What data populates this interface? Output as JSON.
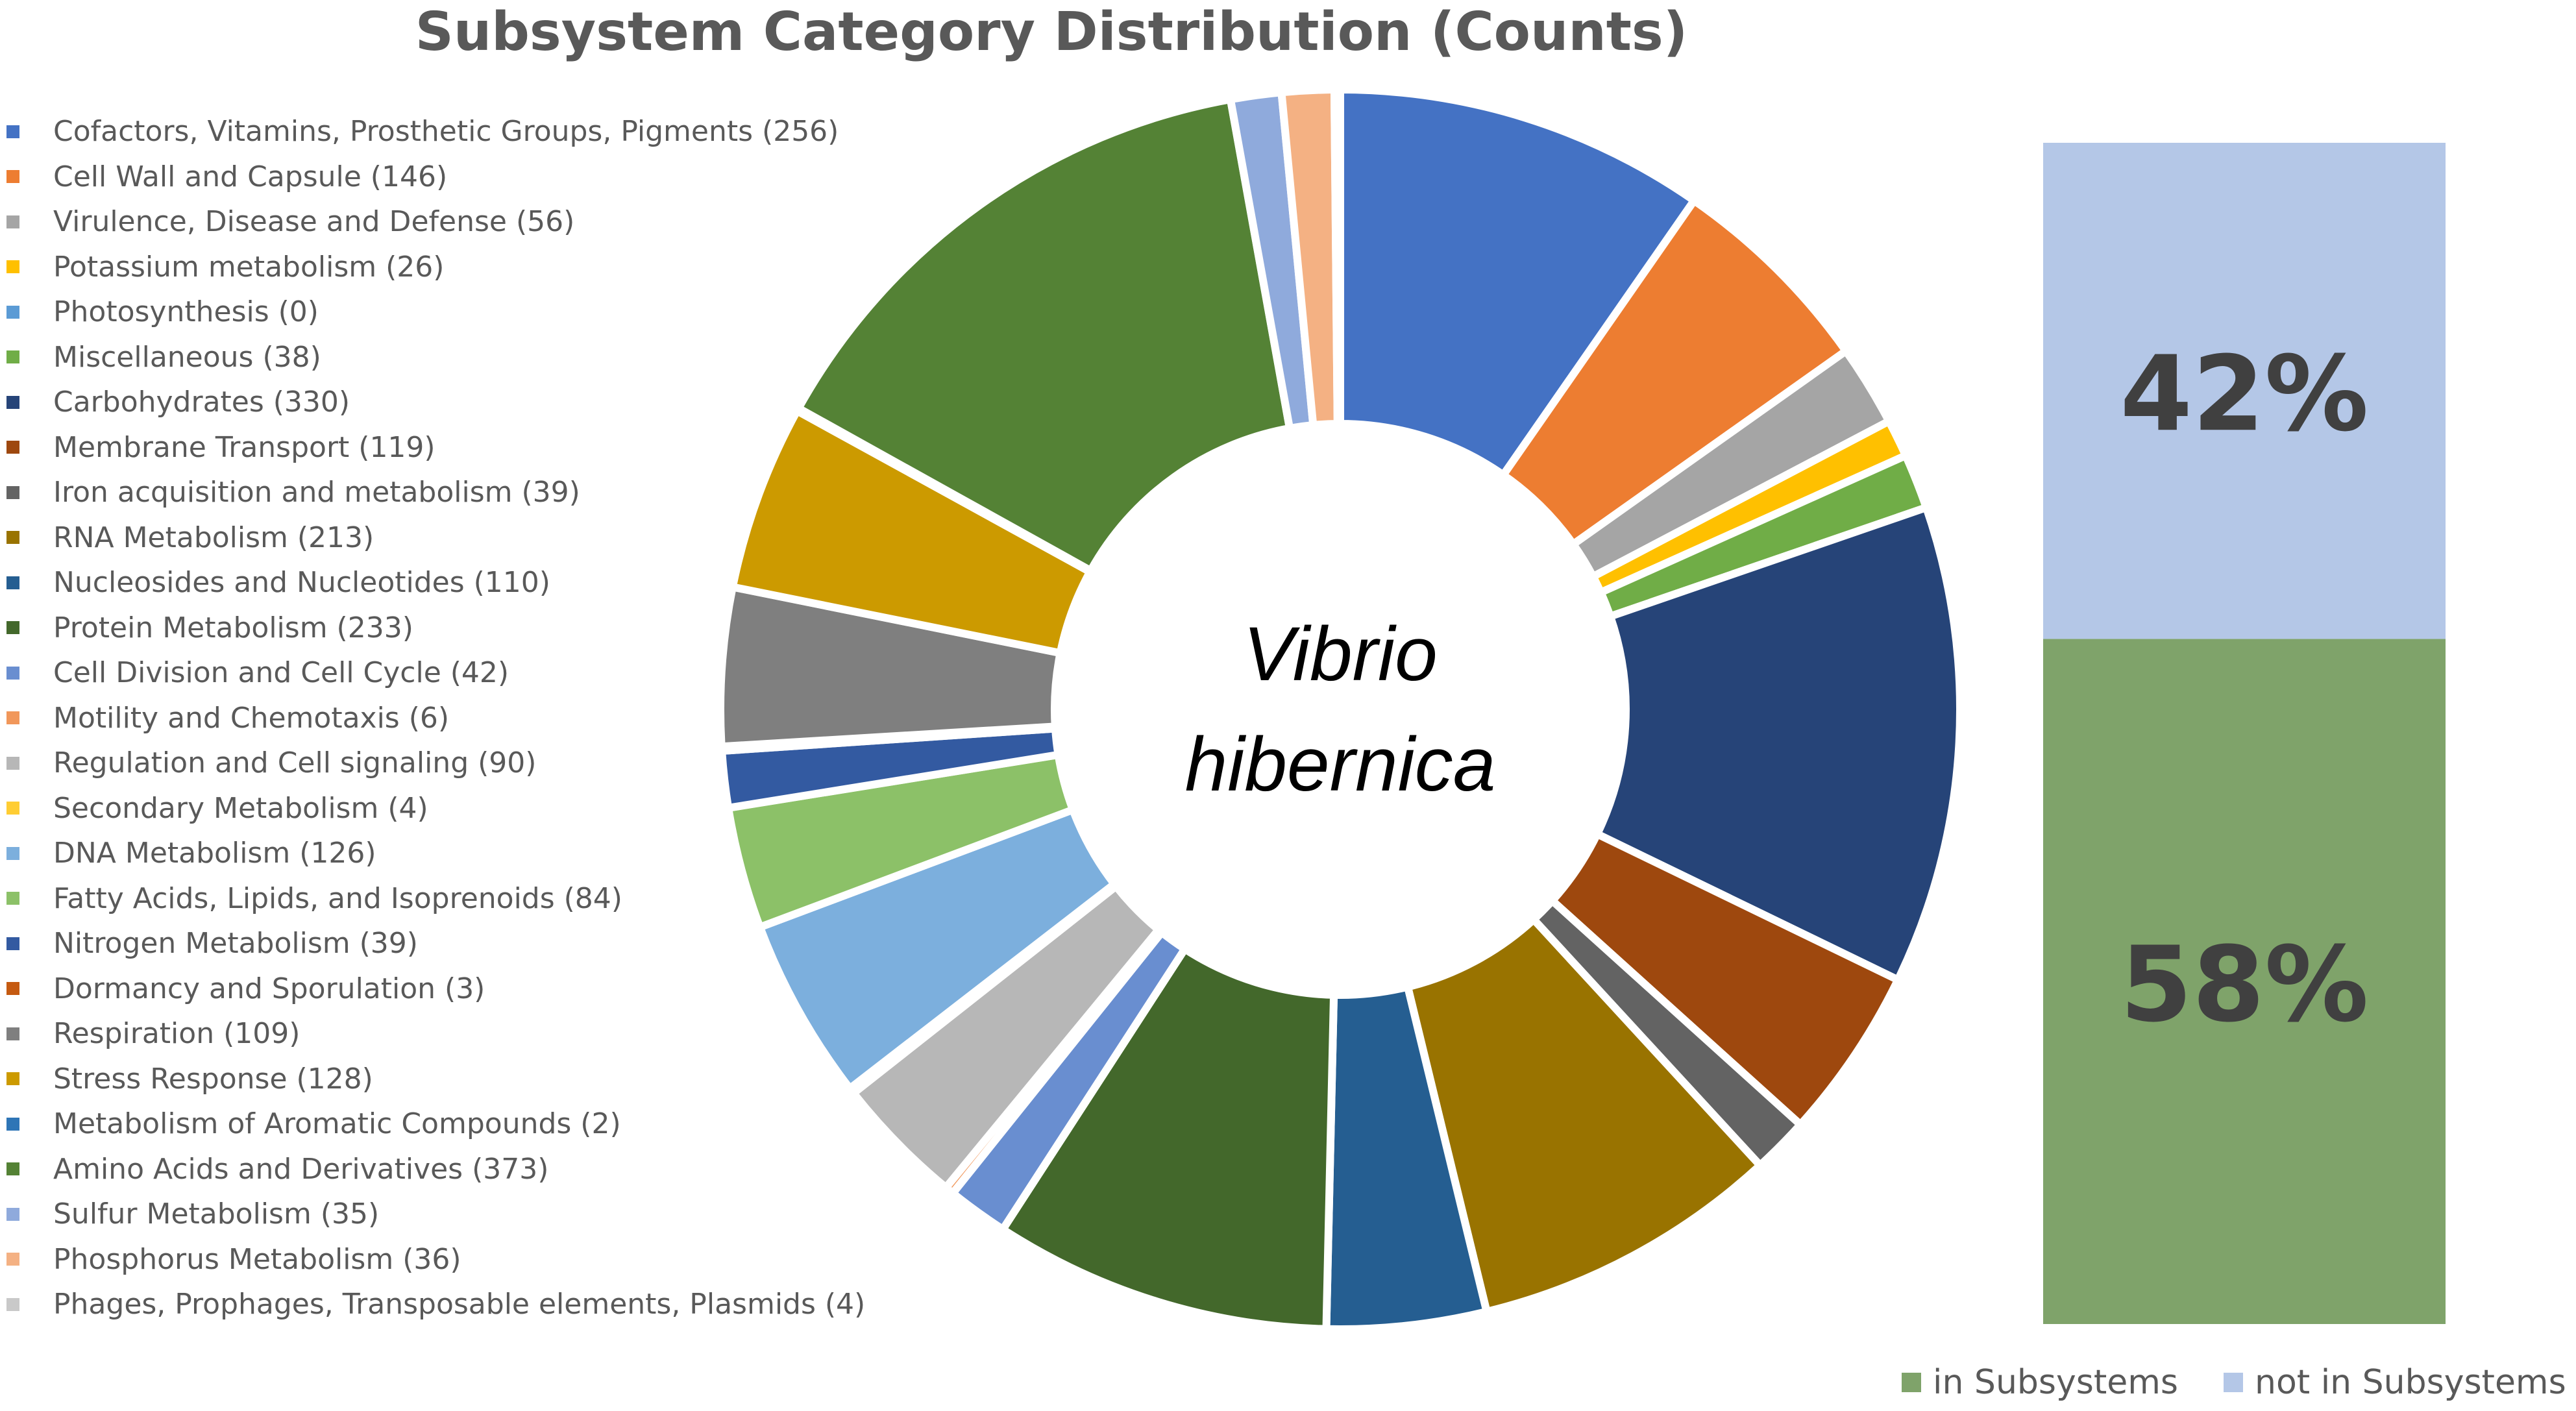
{
  "chart_data": [
    {
      "type": "pie",
      "variant": "donut",
      "title": "Subsystem Category Distribution (Counts)",
      "center_label": [
        "Vibrio",
        "hibernica"
      ],
      "legend_position": "left",
      "slices": [
        {
          "label": "Cofactors, Vitamins, Prosthetic Groups, Pigments (256)",
          "value": 256,
          "color": "#4472C4"
        },
        {
          "label": "Cell Wall and Capsule (146)",
          "value": 146,
          "color": "#ED7D31"
        },
        {
          "label": "Virulence, Disease and Defense (56)",
          "value": 56,
          "color": "#A5A5A5"
        },
        {
          "label": "Potassium metabolism (26)",
          "value": 26,
          "color": "#FFC000"
        },
        {
          "label": "Photosynthesis (0)",
          "value": 0,
          "color": "#5B9BD5"
        },
        {
          "label": "Miscellaneous (38)",
          "value": 38,
          "color": "#70AD47"
        },
        {
          "label": "Carbohydrates (330)",
          "value": 330,
          "color": "#264478"
        },
        {
          "label": "Membrane Transport (119)",
          "value": 119,
          "color": "#9E480E"
        },
        {
          "label": "Iron acquisition and metabolism (39)",
          "value": 39,
          "color": "#636363"
        },
        {
          "label": "RNA Metabolism (213)",
          "value": 213,
          "color": "#997300"
        },
        {
          "label": "Nucleosides and Nucleotides (110)",
          "value": 110,
          "color": "#255E91"
        },
        {
          "label": "Protein Metabolism (233)",
          "value": 233,
          "color": "#43682B"
        },
        {
          "label": "Cell Division and Cell Cycle (42)",
          "value": 42,
          "color": "#698ED0"
        },
        {
          "label": "Motility and Chemotaxis (6)",
          "value": 6,
          "color": "#F1975A"
        },
        {
          "label": "Regulation and Cell signaling (90)",
          "value": 90,
          "color": "#B7B7B7"
        },
        {
          "label": "Secondary Metabolism (4)",
          "value": 4,
          "color": "#FFCD33"
        },
        {
          "label": "DNA Metabolism (126)",
          "value": 126,
          "color": "#7CAFDD"
        },
        {
          "label": "Fatty Acids, Lipids, and Isoprenoids (84)",
          "value": 84,
          "color": "#8CC168"
        },
        {
          "label": "Nitrogen Metabolism (39)",
          "value": 39,
          "color": "#335AA1"
        },
        {
          "label": "Dormancy and Sporulation (3)",
          "value": 3,
          "color": "#C55A11"
        },
        {
          "label": "Respiration (109)",
          "value": 109,
          "color": "#7F7F7F"
        },
        {
          "label": "Stress Response (128)",
          "value": 128,
          "color": "#CC9A00"
        },
        {
          "label": "Metabolism of Aromatic Compounds (2)",
          "value": 2,
          "color": "#2E75B6"
        },
        {
          "label": "Amino Acids and Derivatives (373)",
          "value": 373,
          "color": "#548235"
        },
        {
          "label": "Sulfur Metabolism (35)",
          "value": 35,
          "color": "#8FAADC"
        },
        {
          "label": "Phosphorus Metabolism (36)",
          "value": 36,
          "color": "#F4B183"
        },
        {
          "label": "Phages, Prophages, Transposable elements, Plasmids (4)",
          "value": 4,
          "color": "#C9C9C9"
        }
      ]
    },
    {
      "type": "bar",
      "variant": "stacked-100",
      "categories": [
        ""
      ],
      "series": [
        {
          "name": "in Subsystems",
          "values": [
            58
          ],
          "label": "58%",
          "color": "#7FA36A"
        },
        {
          "name": "not in Subsystems",
          "values": [
            42
          ],
          "label": "42%",
          "color": "#B4C7E7"
        }
      ],
      "ylim": [
        0,
        100
      ],
      "legend_position": "bottom"
    }
  ]
}
